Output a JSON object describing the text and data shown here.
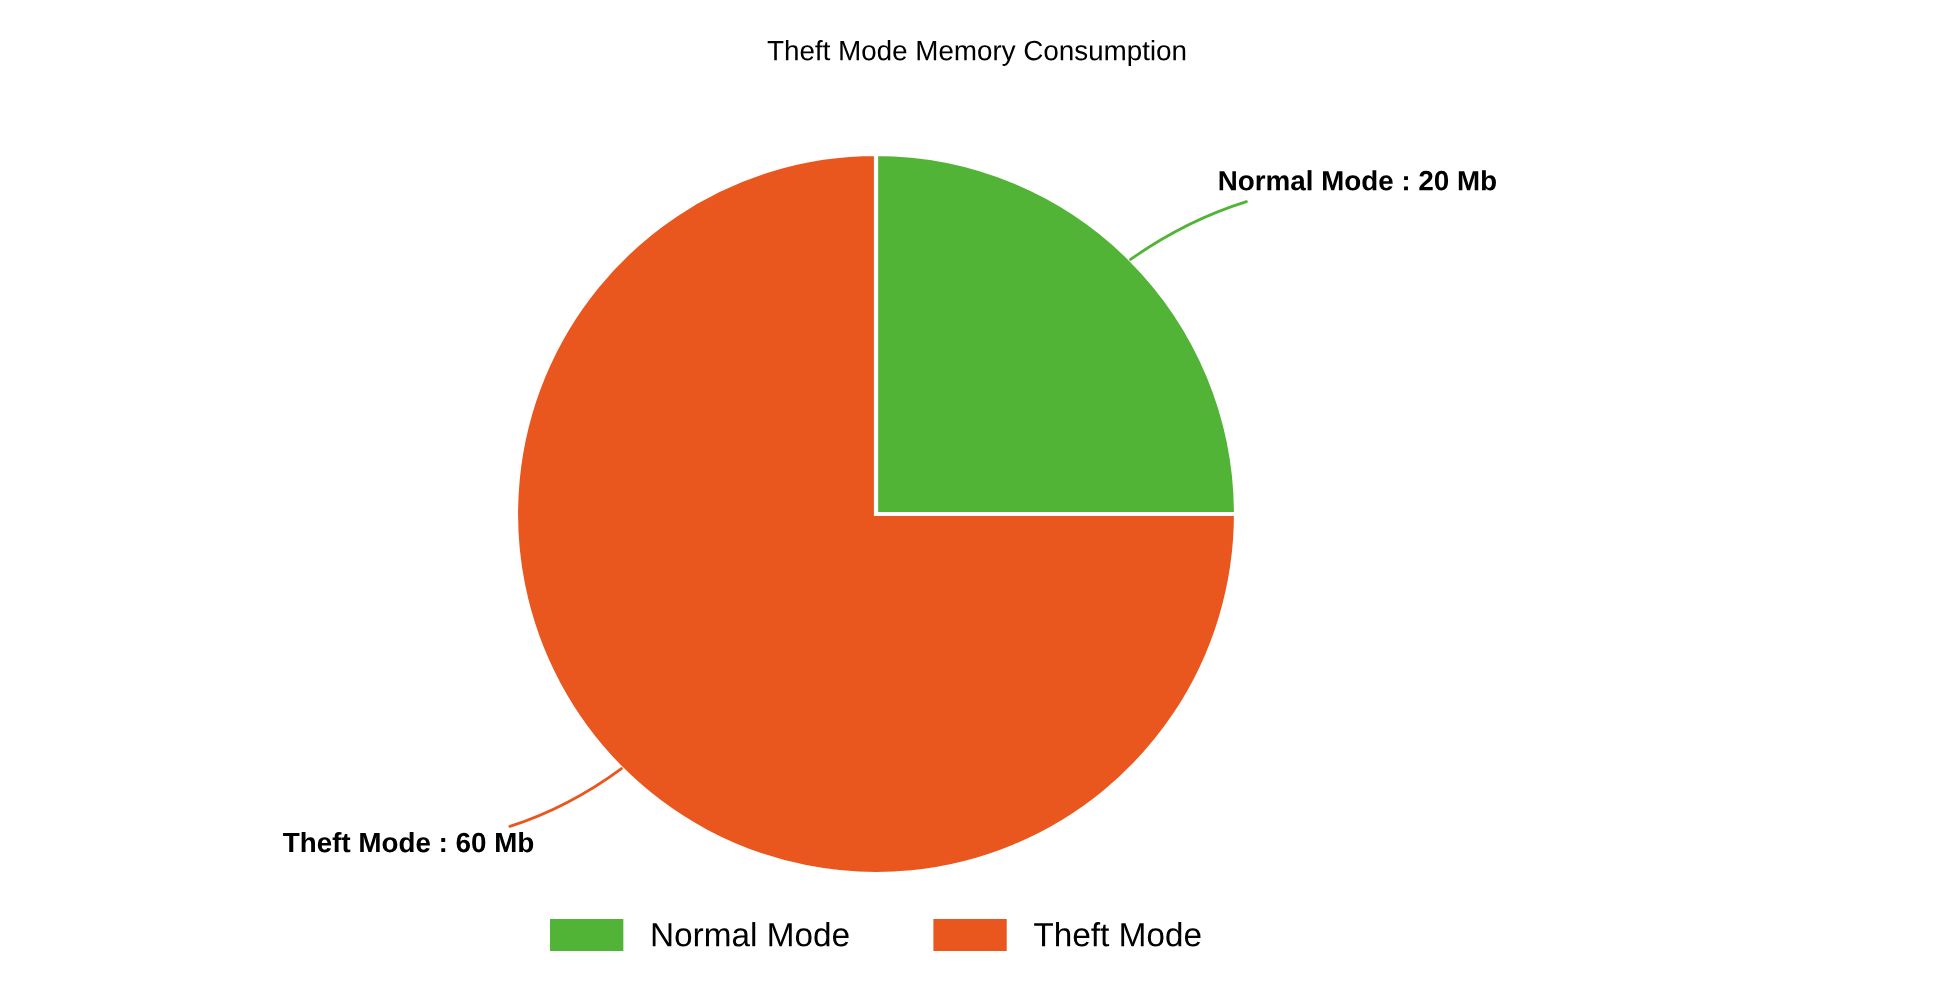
{
  "chart_data": {
    "type": "pie",
    "title": "Theft Mode Memory Consumption",
    "categories": [
      "Normal Mode",
      "Theft Mode"
    ],
    "values": [
      20,
      60
    ],
    "colors": [
      "#52b436",
      "#e9561e"
    ],
    "value_labels": [
      "Normal Mode : 20 Mb",
      "Theft Mode : 60 Mb"
    ],
    "legend": "bottom"
  }
}
